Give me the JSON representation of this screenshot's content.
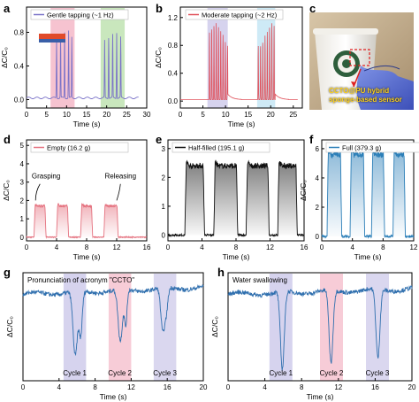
{
  "panel_letters": [
    "a",
    "b",
    "c",
    "d",
    "e",
    "f",
    "g",
    "h"
  ],
  "photo": {
    "caption_line1": "CCTO@PU hybrid",
    "caption_line2": "sponge-based  sensor"
  },
  "chart_data": [
    {
      "id": "a",
      "type": "line",
      "xlabel": "Time (s)",
      "ylabel": "ΔC/C₀",
      "xlim": [
        0,
        30
      ],
      "ylim": [
        -0.1,
        1.1
      ],
      "xticks": [
        0,
        5,
        10,
        15,
        20,
        25,
        30
      ],
      "yticks": [
        0.0,
        0.4,
        0.8
      ],
      "series": [
        {
          "name": "Gentle tapping (~1 Hz)",
          "color": "#7a72c8"
        }
      ],
      "shaded": [
        {
          "x": [
            6,
            12
          ],
          "color": "#f4b8c8"
        },
        {
          "x": [
            18.5,
            24.5
          ],
          "color": "#bfe3b2"
        }
      ],
      "peaks": [
        [
          7.5,
          0.72
        ],
        [
          8.5,
          0.75
        ],
        [
          9.5,
          0.78
        ],
        [
          10.5,
          0.8
        ],
        [
          11.3,
          0.72
        ],
        [
          19.5,
          0.68
        ],
        [
          20.5,
          0.72
        ],
        [
          21.5,
          0.75
        ],
        [
          22.5,
          0.78
        ],
        [
          23.5,
          0.72
        ]
      ],
      "baseline": 0.02
    },
    {
      "id": "b",
      "type": "line",
      "xlabel": "Time (s)",
      "ylabel": "ΔC/C₀",
      "xlim": [
        0,
        27
      ],
      "ylim": [
        -0.1,
        1.35
      ],
      "xticks": [
        0,
        5,
        10,
        15,
        20,
        25
      ],
      "yticks": [
        0.0,
        0.4,
        0.8,
        1.2
      ],
      "series": [
        {
          "name": "Moderate tapping (~2 Hz)",
          "color": "#e0505a"
        }
      ],
      "shaded": [
        {
          "x": [
            6,
            10.5
          ],
          "color": "#cfcbeb"
        },
        {
          "x": [
            17,
            21
          ],
          "color": "#c5e6f4"
        }
      ],
      "bursts": [
        [
          6.2,
          10.5
        ],
        [
          17,
          21
        ]
      ],
      "peak": 1.1,
      "baseline": 0.02
    },
    {
      "id": "d",
      "type": "line",
      "xlabel": "Time (s)",
      "ylabel": "ΔC/C₀",
      "xlim": [
        0,
        16
      ],
      "ylim": [
        -0.2,
        5.3
      ],
      "xticks": [
        0,
        4,
        8,
        12,
        16
      ],
      "yticks": [
        0,
        1,
        2,
        3,
        4,
        5
      ],
      "series": [
        {
          "name": "Empty (16.2 g)",
          "color": "#e57380"
        }
      ],
      "plateaus": [
        [
          1,
          2.6
        ],
        [
          4,
          5.6
        ],
        [
          7.2,
          8.8
        ],
        [
          10.3,
          12.2
        ]
      ],
      "level": 1.7,
      "annotations": [
        "Grasping",
        "Releasing"
      ]
    },
    {
      "id": "e",
      "type": "line",
      "xlabel": "Time (s)",
      "ylabel": "",
      "xlim": [
        0,
        16
      ],
      "ylim": [
        -0.2,
        3.3
      ],
      "xticks": [
        0,
        4,
        8,
        12,
        16
      ],
      "yticks": [
        0,
        1,
        2,
        3
      ],
      "series": [
        {
          "name": "Half-filled (195.1 g)",
          "color": "#111111"
        }
      ],
      "plateaus": [
        [
          2,
          4.3
        ],
        [
          5.4,
          8.2
        ],
        [
          9.2,
          11.9
        ],
        [
          12.9,
          15.2
        ]
      ],
      "level": 2.4
    },
    {
      "id": "f",
      "type": "line",
      "xlabel": "Time (s)",
      "ylabel": "ΔC/C₀",
      "xlim": [
        0,
        12
      ],
      "ylim": [
        -0.3,
        6.6
      ],
      "xticks": [
        0,
        4,
        8,
        12
      ],
      "yticks": [
        0,
        2,
        4,
        6
      ],
      "series": [
        {
          "name": "Full (379.3 g)",
          "color": "#2c7fb8"
        }
      ],
      "plateaus": [
        [
          0.7,
          2.6
        ],
        [
          3.7,
          5.6
        ],
        [
          6.5,
          8.2
        ],
        [
          9.3,
          10.9
        ]
      ],
      "level": 5.6
    },
    {
      "id": "g",
      "type": "line",
      "title": "Pronunciation of acronym \"CCTO\"",
      "xlabel": "Time (s)",
      "ylabel": "ΔC/C₀",
      "xlim": [
        0,
        20
      ],
      "xticks": [
        0,
        4,
        8,
        12,
        16,
        20
      ],
      "series": [
        {
          "name": "",
          "color": "#2f6fae"
        }
      ],
      "shaded": [
        {
          "x": [
            4.5,
            7
          ],
          "color": "#cfcbeb",
          "label": "Cycle 1"
        },
        {
          "x": [
            9.5,
            12
          ],
          "color": "#f6c3d0",
          "label": "Cycle 2"
        },
        {
          "x": [
            14.5,
            17
          ],
          "color": "#d4d0ec",
          "label": "Cycle 3"
        }
      ]
    },
    {
      "id": "h",
      "type": "line",
      "title": "Water swallowing",
      "xlabel": "Time (s)",
      "ylabel": "ΔC/C₀",
      "xlim": [
        0,
        20
      ],
      "xticks": [
        0,
        4,
        8,
        12,
        16,
        20
      ],
      "series": [
        {
          "name": "",
          "color": "#2f6fae"
        }
      ],
      "shaded": [
        {
          "x": [
            4.5,
            7
          ],
          "color": "#cfcbeb",
          "label": "Cycle 1"
        },
        {
          "x": [
            10,
            12.5
          ],
          "color": "#f6c3d0",
          "label": "Cycle 2"
        },
        {
          "x": [
            15,
            17.5
          ],
          "color": "#d4d0ec",
          "label": "Cycle 3"
        }
      ]
    }
  ]
}
